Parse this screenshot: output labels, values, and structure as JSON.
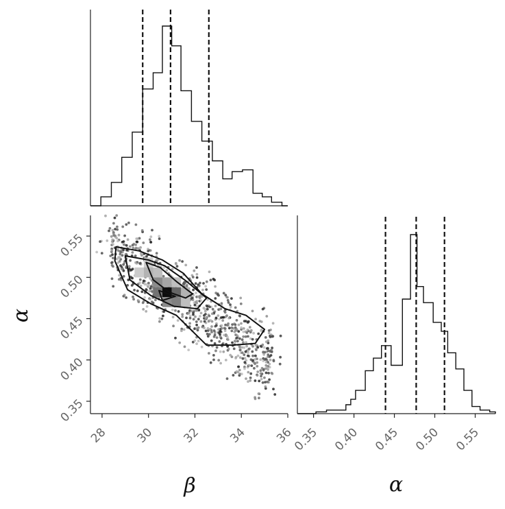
{
  "chart_data": [
    {
      "type": "histogram",
      "panel": "beta-marginal",
      "xlim": [
        27.5,
        36
      ],
      "bins": [
        [
          27.5,
          27.95,
          0.0
        ],
        [
          27.95,
          28.4,
          0.05
        ],
        [
          28.4,
          28.85,
          0.13
        ],
        [
          28.85,
          29.3,
          0.27
        ],
        [
          29.3,
          29.75,
          0.41
        ],
        [
          29.75,
          30.2,
          0.65
        ],
        [
          30.2,
          30.6,
          0.74
        ],
        [
          30.6,
          31.0,
          1.0
        ],
        [
          31.0,
          31.4,
          0.89
        ],
        [
          31.4,
          31.85,
          0.64
        ],
        [
          31.85,
          32.3,
          0.47
        ],
        [
          32.3,
          32.75,
          0.36
        ],
        [
          32.75,
          33.2,
          0.25
        ],
        [
          33.2,
          33.6,
          0.15
        ],
        [
          33.6,
          34.05,
          0.19
        ],
        [
          34.05,
          34.5,
          0.2
        ],
        [
          34.5,
          34.9,
          0.07
        ],
        [
          34.9,
          35.3,
          0.05
        ],
        [
          35.3,
          35.75,
          0.02
        ],
        [
          35.75,
          36.0,
          0.0
        ]
      ],
      "quantiles": [
        29.75,
        30.95,
        32.6
      ]
    },
    {
      "type": "histogram",
      "panel": "alpha-marginal",
      "xlim": [
        0.33,
        0.575
      ],
      "bins": [
        [
          0.33,
          0.353,
          0.0
        ],
        [
          0.353,
          0.366,
          0.01
        ],
        [
          0.366,
          0.39,
          0.02
        ],
        [
          0.39,
          0.396,
          0.05
        ],
        [
          0.396,
          0.402,
          0.08
        ],
        [
          0.402,
          0.414,
          0.13
        ],
        [
          0.414,
          0.424,
          0.24
        ],
        [
          0.424,
          0.434,
          0.31
        ],
        [
          0.434,
          0.446,
          0.38
        ],
        [
          0.446,
          0.46,
          0.27
        ],
        [
          0.46,
          0.47,
          0.64
        ],
        [
          0.47,
          0.478,
          1.0
        ],
        [
          0.478,
          0.486,
          0.71
        ],
        [
          0.486,
          0.498,
          0.62
        ],
        [
          0.498,
          0.508,
          0.51
        ],
        [
          0.508,
          0.516,
          0.46
        ],
        [
          0.516,
          0.526,
          0.34
        ],
        [
          0.526,
          0.536,
          0.25
        ],
        [
          0.536,
          0.546,
          0.13
        ],
        [
          0.546,
          0.556,
          0.04
        ],
        [
          0.556,
          0.568,
          0.02
        ],
        [
          0.568,
          0.575,
          0.01
        ]
      ],
      "quantiles": [
        0.439,
        0.477,
        0.512
      ]
    },
    {
      "type": "scatter",
      "panel": "joint",
      "xlim": [
        27.5,
        36
      ],
      "ylim": [
        0.335,
        0.575
      ],
      "trend": {
        "x0": 28.0,
        "y0": 0.545,
        "x1": 35.9,
        "y1": 0.385
      },
      "contours": [
        {
          "level": "outer",
          "points": [
            [
              28.6,
              0.537
            ],
            [
              29.6,
              0.532
            ],
            [
              30.6,
              0.521
            ],
            [
              31.5,
              0.505
            ],
            [
              32.3,
              0.48
            ],
            [
              33.3,
              0.462
            ],
            [
              34.2,
              0.454
            ],
            [
              35.0,
              0.437
            ],
            [
              34.6,
              0.42
            ],
            [
              33.6,
              0.418
            ],
            [
              32.5,
              0.418
            ],
            [
              31.2,
              0.454
            ],
            [
              30.1,
              0.468
            ],
            [
              29.1,
              0.485
            ],
            [
              28.55,
              0.52
            ]
          ]
        },
        {
          "level": "middle",
          "points": [
            [
              29.0,
              0.526
            ],
            [
              30.0,
              0.521
            ],
            [
              30.7,
              0.514
            ],
            [
              31.6,
              0.496
            ],
            [
              32.5,
              0.475
            ],
            [
              32.1,
              0.462
            ],
            [
              31.1,
              0.465
            ],
            [
              30.1,
              0.478
            ],
            [
              29.2,
              0.497
            ]
          ]
        },
        {
          "level": "inner",
          "points": [
            [
              29.9,
              0.518
            ],
            [
              30.5,
              0.512
            ],
            [
              31.2,
              0.495
            ],
            [
              31.9,
              0.48
            ],
            [
              31.6,
              0.475
            ],
            [
              30.9,
              0.482
            ],
            [
              30.2,
              0.497
            ]
          ]
        },
        {
          "level": "peak",
          "points": [
            [
              30.45,
              0.484
            ],
            [
              31.15,
              0.477
            ],
            [
              30.6,
              0.472
            ]
          ]
        }
      ],
      "density_cells": [
        [
          30.4,
          0.494,
          0.45
        ],
        [
          30.8,
          0.494,
          0.35
        ],
        [
          31.2,
          0.494,
          0.25
        ],
        [
          30.4,
          0.482,
          0.55
        ],
        [
          30.8,
          0.482,
          0.95
        ],
        [
          31.2,
          0.482,
          0.6
        ],
        [
          31.6,
          0.482,
          0.3
        ],
        [
          30.8,
          0.47,
          0.45
        ],
        [
          31.2,
          0.47,
          0.5
        ],
        [
          31.6,
          0.47,
          0.25
        ],
        [
          30.0,
          0.506,
          0.3
        ],
        [
          30.4,
          0.506,
          0.25
        ],
        [
          29.6,
          0.506,
          0.2
        ],
        [
          30.0,
          0.518,
          0.2
        ]
      ]
    }
  ],
  "axes": {
    "beta": {
      "label": "β",
      "ticks": [
        "28",
        "30",
        "32",
        "34",
        "36"
      ]
    },
    "alpha_x": {
      "label": "α",
      "ticks": [
        "0.35",
        "0.40",
        "0.45",
        "0.50",
        "0.55"
      ]
    },
    "alpha_y": {
      "label": "α",
      "ticks": [
        "0.35",
        "0.40",
        "0.45",
        "0.50",
        "0.55"
      ]
    }
  }
}
